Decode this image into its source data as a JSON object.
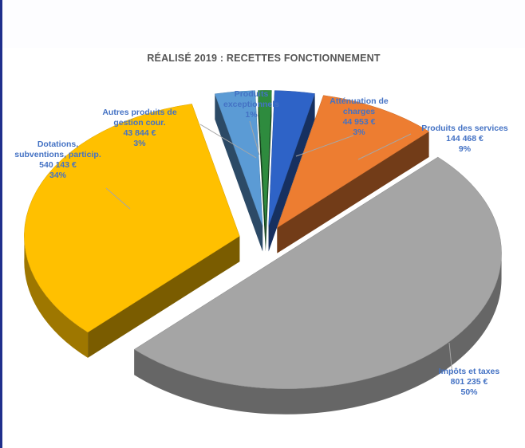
{
  "chart_data": {
    "type": "pie",
    "title": "RÉALISÉ 2019 : RECETTES FONCTIONNEMENT",
    "slices": [
      {
        "name": "Produits exceptionnels",
        "lines": [
          "Produits",
          "exceptionnels"
        ],
        "value_label": "",
        "percent_label": "1%",
        "percent": 1,
        "color": "#2e8b3e"
      },
      {
        "name": "Atténuation de charges",
        "lines": [
          "Atténuation de",
          "charges"
        ],
        "value_label": "44 953 €",
        "percent_label": "3%",
        "value": 44953,
        "percent": 3,
        "color": "#2e63c7"
      },
      {
        "name": "Produits des services",
        "lines": [
          "Produits des services"
        ],
        "value_label": "144 468 €",
        "percent_label": "9%",
        "value": 144468,
        "percent": 9,
        "color": "#ed7d31"
      },
      {
        "name": "Impôts et taxes",
        "lines": [
          "Impôts et taxes"
        ],
        "value_label": "801 235 €",
        "percent_label": "50%",
        "value": 801235,
        "percent": 50,
        "color": "#a5a5a5"
      },
      {
        "name": "Dotations, subventions, particip.",
        "lines": [
          "Dotations,",
          "subventions, particip."
        ],
        "value_label": "540 143 €",
        "percent_label": "34%",
        "value": 540143,
        "percent": 34,
        "color": "#ffc000"
      },
      {
        "name": "Autres produits de gestion cour.",
        "lines": [
          "Autres produits de",
          "gestion cour."
        ],
        "value_label": "43 844 €",
        "percent_label": "3%",
        "value": 43844,
        "percent": 3,
        "color": "#5b9bd5"
      }
    ]
  }
}
